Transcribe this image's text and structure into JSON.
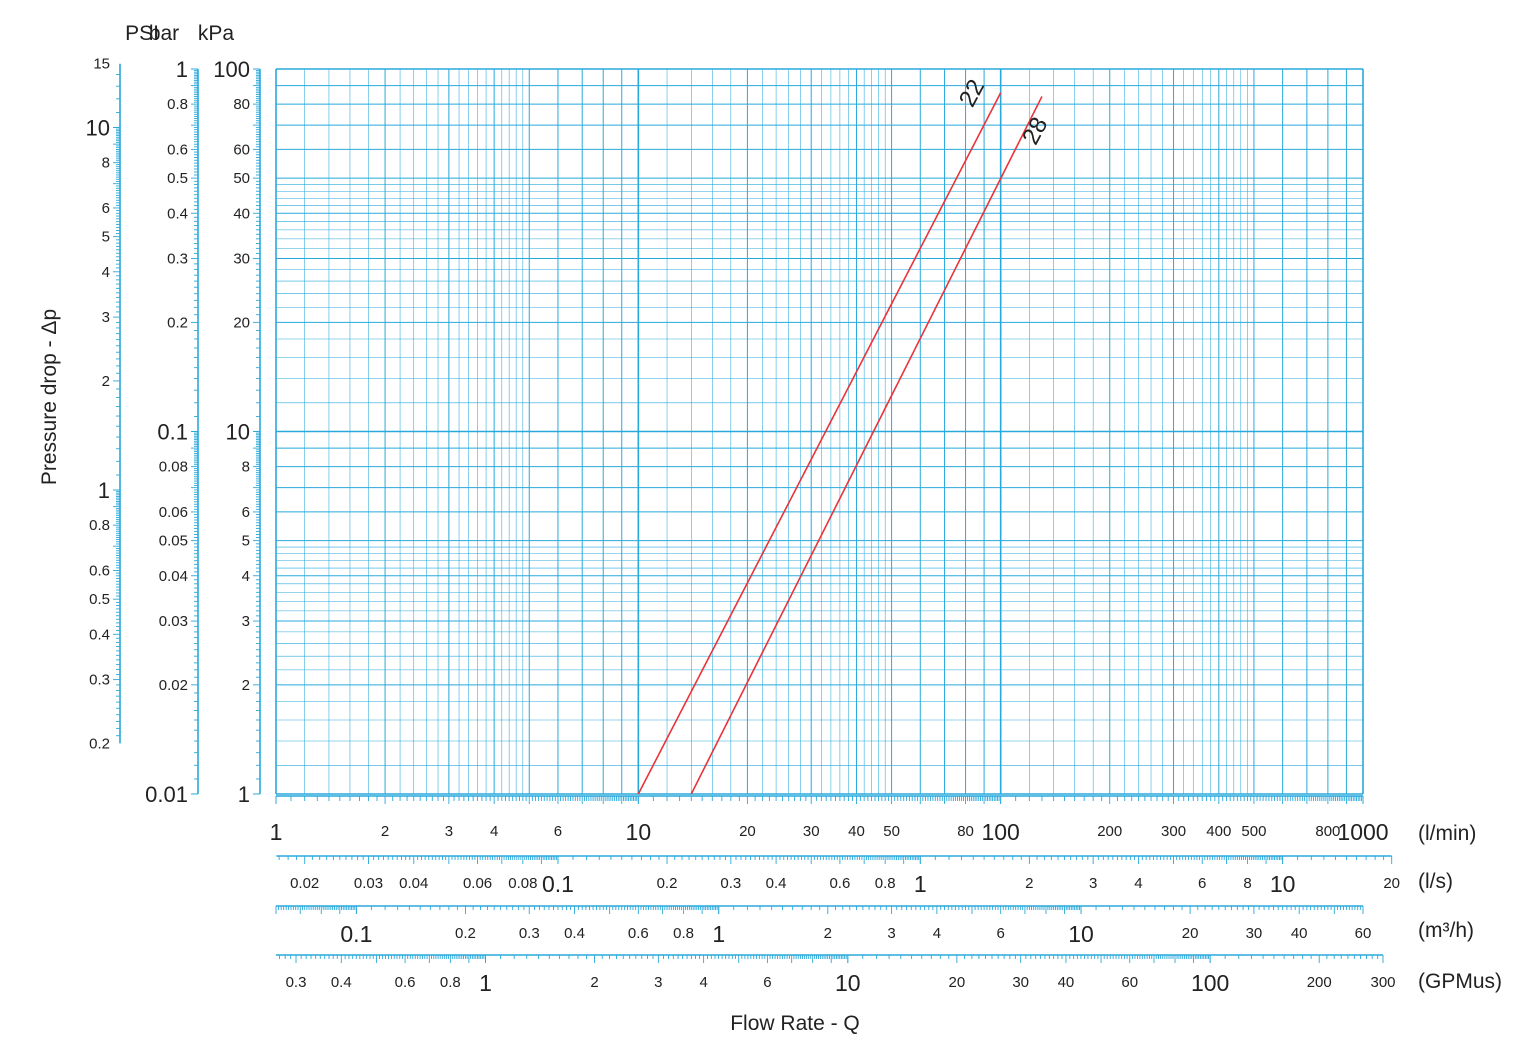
{
  "chart_data": {
    "type": "line",
    "x_scale": "log",
    "y_scale": "log",
    "grid": true,
    "xlim": [
      1,
      1000
    ],
    "ylim": [
      1,
      100
    ],
    "xlabel": "Flow Rate - Q",
    "ylabel": "Pressure drop  - Δp",
    "y_axes": [
      {
        "unit": "PSI",
        "ticks": [
          "15",
          "10",
          "8",
          "6",
          "5",
          "4",
          "3",
          "2",
          "1",
          "0.8",
          "0.6",
          "0.5",
          "0.4",
          "0.3",
          "0.2"
        ]
      },
      {
        "unit": "bar",
        "ticks": [
          "1",
          "0.8",
          "0.6",
          "0.5",
          "0.4",
          "0.3",
          "0.2",
          "0.1",
          "0.08",
          "0.06",
          "0.05",
          "0.04",
          "0.03",
          "0.02",
          "0.01"
        ]
      },
      {
        "unit": "kPa",
        "ticks": [
          "100",
          "80",
          "60",
          "50",
          "40",
          "30",
          "20",
          "10",
          "8",
          "6",
          "5",
          "4",
          "3",
          "2",
          "1"
        ]
      }
    ],
    "x_axes": [
      {
        "unit": "(l/min)",
        "ticks": [
          "1",
          "2",
          "3",
          "4",
          "6",
          "10",
          "20",
          "30",
          "40",
          "50",
          "80",
          "100",
          "200",
          "300",
          "400",
          "500",
          "800",
          "1000"
        ]
      },
      {
        "unit": "(l/s)",
        "ticks": [
          "0.02",
          "0.03",
          "0.04",
          "0.06",
          "0.08",
          "0.1",
          "0.2",
          "0.3",
          "0.4",
          "0.6",
          "0.8",
          "1",
          "2",
          "3",
          "4",
          "6",
          "8",
          "10",
          "20"
        ]
      },
      {
        "unit": "(m³/h)",
        "ticks": [
          "0.1",
          "0.2",
          "0.3",
          "0.4",
          "0.6",
          "0.8",
          "1",
          "2",
          "3",
          "4",
          "6",
          "10",
          "20",
          "30",
          "40",
          "60"
        ]
      },
      {
        "unit": "(GPMus)",
        "ticks": [
          "0.3",
          "0.4",
          "0.6",
          "0.8",
          "1",
          "2",
          "3",
          "4",
          "6",
          "10",
          "20",
          "30",
          "40",
          "60",
          "100",
          "200",
          "300"
        ]
      }
    ],
    "series": [
      {
        "name": "22",
        "color": "#e8343a",
        "x": [
          10,
          100
        ],
        "y": [
          1,
          86
        ]
      },
      {
        "name": "28",
        "color": "#e8343a",
        "x": [
          14,
          130
        ],
        "y": [
          1,
          84
        ]
      }
    ]
  },
  "colors": {
    "grid": "#28a9dc",
    "curve": "#e8343a",
    "text": "#222222"
  }
}
